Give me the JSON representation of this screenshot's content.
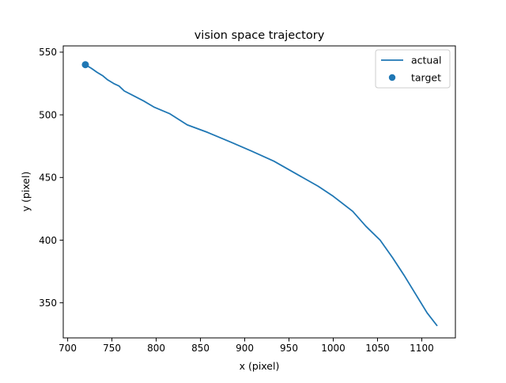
{
  "chart_data": {
    "type": "line",
    "title": "vision space trajectory",
    "xlabel": "x (pixel)",
    "ylabel": "y (pixel)",
    "xlim": [
      695,
      1138
    ],
    "ylim": [
      322,
      555
    ],
    "xticks": [
      700,
      750,
      800,
      850,
      900,
      950,
      1000,
      1050,
      1100
    ],
    "yticks": [
      350,
      400,
      450,
      500,
      550
    ],
    "grid": false,
    "legend_position": "top-right",
    "series": [
      {
        "name": "actual",
        "kind": "line",
        "color": "#1f77b4",
        "x": [
          720,
          727,
          733,
          740,
          745,
          752,
          758,
          764,
          775,
          786,
          798,
          815,
          835,
          858,
          885,
          908,
          933,
          958,
          983,
          1000,
          1022,
          1037,
          1053,
          1067,
          1080,
          1093,
          1106,
          1117
        ],
        "y": [
          540,
          537,
          534,
          531,
          528,
          525,
          523,
          519,
          515,
          511,
          506,
          501,
          492,
          486,
          478,
          471,
          463,
          453,
          443,
          435,
          423,
          411,
          400,
          386,
          372,
          357,
          342,
          332
        ]
      },
      {
        "name": "target",
        "kind": "scatter",
        "color": "#1f77b4",
        "x": [
          720
        ],
        "y": [
          540
        ]
      }
    ]
  }
}
